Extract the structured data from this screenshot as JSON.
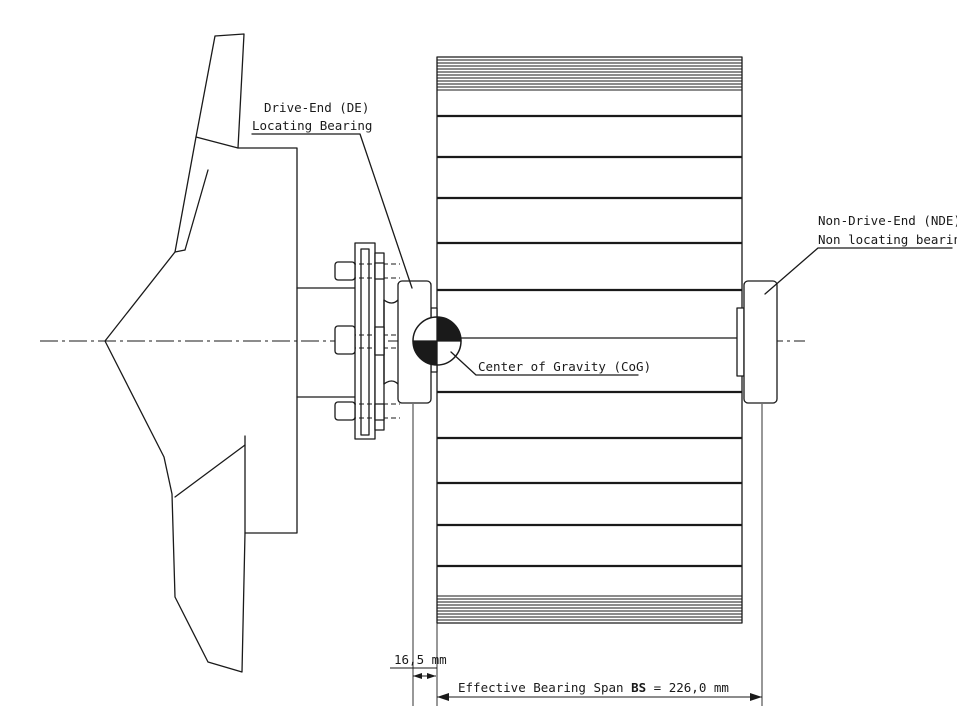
{
  "labels": {
    "de_line1": "Drive-End (DE)",
    "de_line2": "Locating Bearing",
    "nde_line1": "Non-Drive-End (NDE)",
    "nde_line2": "Non locating bearing",
    "cog": "Center of Gravity (CoG)",
    "offset_dim": "16,5 mm",
    "span_dim_prefix": "Effective Bearing Span ",
    "span_dim_bold": "BS",
    "span_dim_suffix": " = 226,0 mm"
  },
  "colors": {
    "line": "#1a1a1a",
    "background": "#ffffff"
  }
}
